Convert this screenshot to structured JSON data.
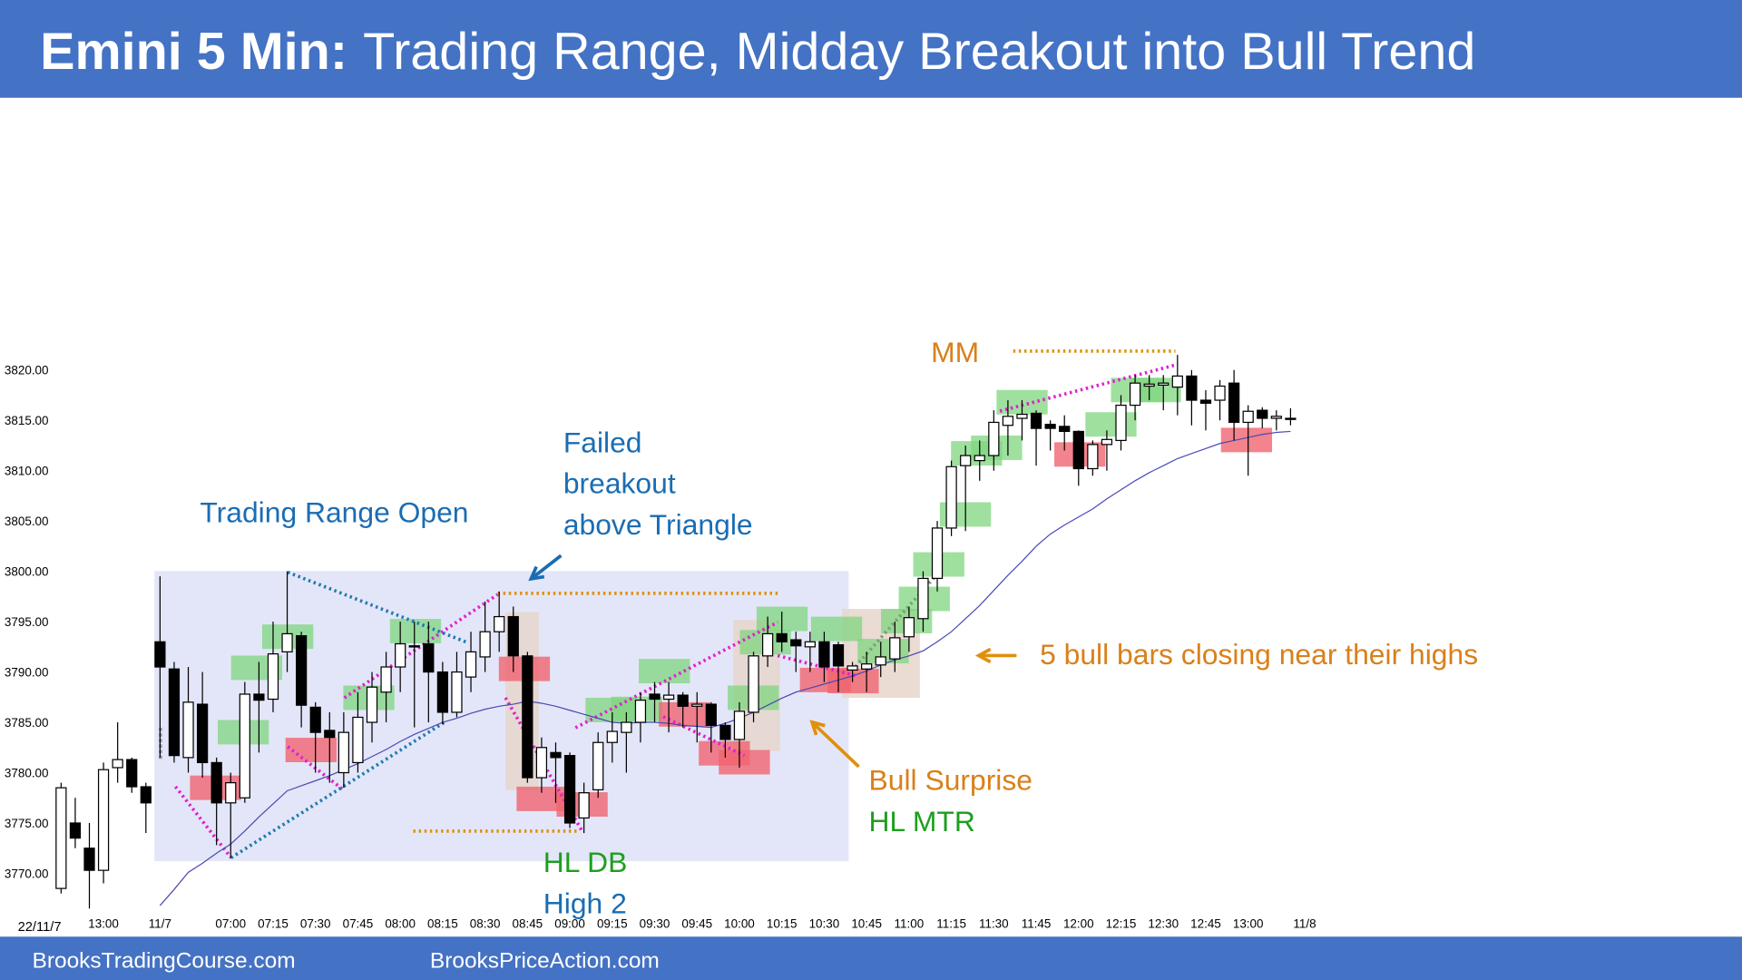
{
  "header": {
    "label": "Emini 5 Min:",
    "title": "Trading Range, Midday Breakout into Bull Trend"
  },
  "footer": {
    "links": [
      "BrooksTradingCourse.com",
      "BrooksPriceAction.com"
    ]
  },
  "chart_data": {
    "type": "candlestick",
    "date_label": "22/11/7",
    "categories": [
      null,
      null,
      null,
      "13:00",
      null,
      null,
      null,
      "11/7",
      null,
      null,
      null,
      null,
      "07:00",
      null,
      null,
      "07:15",
      null,
      null,
      "07:30",
      null,
      null,
      "07:45",
      null,
      null,
      "08:00",
      null,
      null,
      "08:15",
      null,
      null,
      "08:30",
      null,
      null,
      "08:45",
      null,
      null,
      "09:00",
      null,
      null,
      "09:15",
      null,
      null,
      "09:30",
      null,
      null,
      "09:45",
      null,
      null,
      "10:00",
      null,
      null,
      "10:15",
      null,
      null,
      "10:30",
      null,
      null,
      "10:45",
      null,
      null,
      "11:00",
      null,
      null,
      "11:15",
      null,
      null,
      "11:30",
      null,
      null,
      "11:45",
      null,
      null,
      "12:00",
      null,
      null,
      "12:15",
      null,
      null,
      "12:30",
      null,
      null,
      "12:45",
      null,
      null,
      "13:00",
      null,
      null,
      null,
      "11/8"
    ],
    "open": [
      3768.5,
      3775,
      3772.5,
      3770.3,
      3780.5,
      3781.3,
      3778.6,
      3793,
      3790.3,
      3781.5,
      3786.8,
      3781,
      3777,
      3777.5,
      3787.8,
      3787.3,
      3792,
      3793.6,
      3786.5,
      3784.2,
      3780,
      3781,
      3785,
      3788,
      3790.5,
      3792.5,
      3792.8,
      3790,
      3786,
      3789.5,
      3791.5,
      3794,
      3795.5,
      3791.6,
      3779.5,
      3782,
      3781.7,
      3775.5,
      3778.3,
      3783,
      3784,
      3785,
      3787.8,
      3787.3,
      3787.7,
      3786.6,
      3786.8,
      3784.7,
      3783.3,
      3786,
      3791.6,
      3793.8,
      3793.2,
      3792.5,
      3793,
      3792.7,
      3790.2,
      3790.3,
      3790.7,
      3791.3,
      3793.5,
      3795.3,
      3799.3,
      3804.3,
      3810.5,
      3811,
      3811.5,
      3814.5,
      3815.2,
      3815.7,
      3814.6,
      3814.4,
      3813.9,
      3810.2,
      3812.6,
      3813,
      3816.5,
      3818.4,
      3818.5,
      3818.3,
      3819.4,
      3817,
      3817,
      3818.7,
      3814.8,
      3816,
      3815.2,
      3815.2,
      null
    ],
    "high": [
      3779,
      3777.5,
      3775,
      3781,
      3785,
      3781.5,
      3779,
      3799.5,
      3791,
      3790.5,
      3790,
      3781.5,
      3780,
      3789,
      3791,
      3795,
      3800,
      3794,
      3787,
      3786,
      3786,
      3788,
      3790,
      3792,
      3795,
      3795,
      3795,
      3791,
      3792,
      3794,
      3797,
      3798,
      3796.5,
      3792,
      3783.5,
      3783,
      3782,
      3779,
      3784,
      3786,
      3786,
      3788,
      3789,
      3789,
      3788,
      3788,
      3787,
      3785,
      3787,
      3792,
      3795.5,
      3796,
      3794,
      3794,
      3794,
      3793,
      3791,
      3792,
      3793,
      3795,
      3796.5,
      3800,
      3805,
      3811,
      3812.5,
      3813,
      3816,
      3817,
      3817,
      3816,
      3815,
      3815.5,
      3814,
      3813,
      3814,
      3817.5,
      3819.5,
      3819.5,
      3819.5,
      3821.5,
      3820,
      3818,
      3819,
      3820,
      3816.5,
      3816.3,
      3816,
      3816.2,
      null
    ],
    "low": [
      3768,
      3772.5,
      3766.5,
      3769,
      3779,
      3778,
      3774,
      3781.5,
      3781,
      3780,
      3779.5,
      3772.8,
      3771.5,
      3777,
      3782,
      3786,
      3790,
      3784.5,
      3780,
      3779,
      3778.5,
      3780,
      3783,
      3785,
      3788,
      3784.5,
      3785,
      3784.8,
      3785.5,
      3788,
      3790,
      3792,
      3790,
      3779,
      3778,
      3777,
      3774.5,
      3774,
      3777.5,
      3781,
      3780,
      3783,
      3785,
      3784,
      3784.5,
      3783,
      3782,
      3781.5,
      3780.5,
      3785,
      3790.5,
      3792,
      3790,
      3790,
      3789,
      3788,
      3789,
      3788,
      3789.5,
      3790,
      3792,
      3794,
      3798,
      3803.5,
      3804,
      3809,
      3810,
      3811.5,
      3813,
      3810.5,
      3812,
      3812,
      3808.5,
      3809.5,
      3810,
      3812,
      3815,
      3817,
      3816,
      3815.5,
      3814.5,
      3814,
      3815,
      3813,
      3809.5,
      3814.2,
      3814,
      3814.5,
      null
    ],
    "close": [
      3778.5,
      3773.5,
      3770.3,
      3780.3,
      3781.3,
      3778.6,
      3777,
      3790.5,
      3781.7,
      3787,
      3781,
      3777,
      3779,
      3787.8,
      3787.2,
      3791.8,
      3793.8,
      3786.7,
      3784,
      3783.5,
      3784,
      3785.5,
      3788.5,
      3790.5,
      3792.8,
      3792.6,
      3790,
      3786,
      3790,
      3792,
      3794,
      3795.5,
      3791.6,
      3779.5,
      3782.5,
      3781.5,
      3775,
      3778,
      3783,
      3784.1,
      3785,
      3787.2,
      3787.3,
      3787.7,
      3786.6,
      3786.8,
      3784.7,
      3783.3,
      3786.1,
      3791.6,
      3793.8,
      3793,
      3792.6,
      3793,
      3790.5,
      3790.6,
      3790.6,
      3790.8,
      3791.5,
      3793.4,
      3795.4,
      3799.3,
      3804.3,
      3810.4,
      3811.5,
      3811.5,
      3814.8,
      3815.4,
      3815.6,
      3814.2,
      3814.2,
      3813.9,
      3810.2,
      3812.6,
      3813.1,
      3816.5,
      3818.7,
      3818.6,
      3818.7,
      3819.4,
      3817,
      3816.7,
      3818.4,
      3814.8,
      3815.9,
      3815.2,
      3815.4,
      3815.2,
      null
    ],
    "up_color": "#ffffff",
    "down_color": "#000000",
    "moving_average": {
      "color": "#4a4ab4",
      "values": [
        null,
        null,
        null,
        null,
        null,
        null,
        null,
        3766.8,
        3768.4,
        3770.1,
        3771.0,
        3772.0,
        3772.9,
        3774.2,
        3775.6,
        3776.9,
        3778.2,
        3778.7,
        3779.2,
        3779.7,
        3780.3,
        3780.9,
        3781.6,
        3782.3,
        3783.1,
        3783.8,
        3784.4,
        3785.0,
        3785.4,
        3785.9,
        3786.3,
        3786.6,
        3786.8,
        3787.1,
        3786.9,
        3786.6,
        3786.2,
        3785.8,
        3785.4,
        3785.0,
        3784.9,
        3785.0,
        3785.0,
        3784.9,
        3784.7,
        3784.6,
        3784.5,
        3784.9,
        3785.4,
        3786.0,
        3786.7,
        3787.4,
        3788.0,
        3788.4,
        3788.8,
        3789.2,
        3789.6,
        3790.1,
        3790.7,
        3791.2,
        3791.6,
        3792.1,
        3793.0,
        3794.0,
        3795.3,
        3796.6,
        3798.1,
        3799.6,
        3801.0,
        3802.5,
        3803.7,
        3804.6,
        3805.4,
        3806.2,
        3807.2,
        3808.1,
        3809.0,
        3809.8,
        3810.5,
        3811.2,
        3811.7,
        3812.2,
        3812.7,
        3813.0,
        3813.3,
        3813.6,
        3813.8,
        3813.9,
        null
      ]
    },
    "ylim": [
      3765,
      3845
    ],
    "yticks": [
      {
        "value": 3770,
        "label": "3770.00"
      },
      {
        "value": 3775,
        "label": "3775.00"
      },
      {
        "value": 3780,
        "label": "3780.00"
      },
      {
        "value": 3785,
        "label": "3785.00"
      },
      {
        "value": 3790,
        "label": "3790.00"
      },
      {
        "value": 3795,
        "label": "3795.00"
      },
      {
        "value": 3800,
        "label": "3800.00"
      },
      {
        "value": 3805,
        "label": "3805.00"
      },
      {
        "value": 3810,
        "label": "3810.00"
      },
      {
        "value": 3815,
        "label": "3815.00"
      },
      {
        "value": 3820,
        "label": "3820.00"
      }
    ],
    "grid": false,
    "annotations": [
      "Trading Range Open",
      "Failed",
      "breakout",
      "above Triangle",
      "MM",
      "5 bull bars closing near their highs",
      "Bull Surprise",
      "HL MTR",
      "HL DB",
      "High 2"
    ]
  }
}
